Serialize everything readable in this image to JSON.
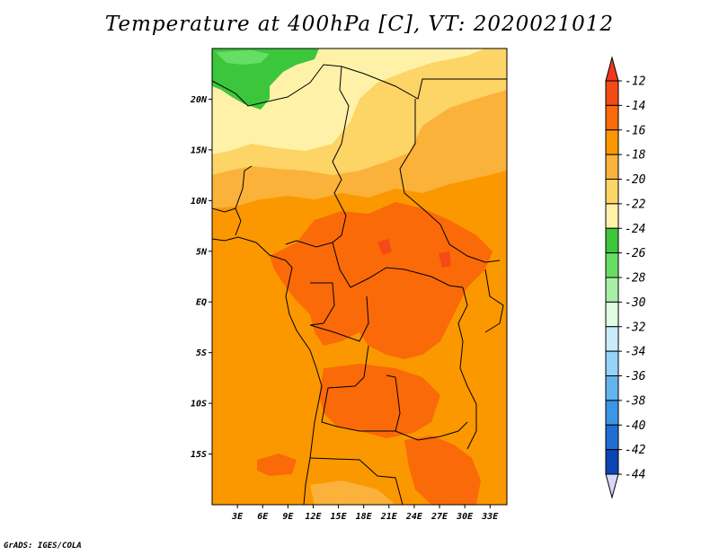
{
  "title": "Temperature at 400hPa [C], VT: 2020021012",
  "credit": "GrADS: IGES/COLA",
  "map": {
    "lon_range": [
      0,
      35
    ],
    "lat_range": [
      -20,
      25
    ],
    "x_ticks": [
      "3E",
      "6E",
      "9E",
      "12E",
      "15E",
      "18E",
      "21E",
      "24E",
      "27E",
      "30E",
      "33E"
    ],
    "x_tick_values": [
      3,
      6,
      9,
      12,
      15,
      18,
      21,
      24,
      27,
      30,
      33
    ],
    "y_ticks": [
      "20N",
      "15N",
      "10N",
      "5N",
      "EQ",
      "5S",
      "10S",
      "15S"
    ],
    "y_tick_values": [
      20,
      15,
      10,
      5,
      0,
      -5,
      -10,
      -15
    ]
  },
  "colorbar": {
    "labels": [
      "-12",
      "-14",
      "-16",
      "-18",
      "-20",
      "-22",
      "-24",
      "-26",
      "-28",
      "-30",
      "-32",
      "-34",
      "-36",
      "-38",
      "-40",
      "-42",
      "-44"
    ],
    "colors": [
      "#f54a15",
      "#fa6a08",
      "#fb9800",
      "#fbb23a",
      "#fdd466",
      "#fff2a8",
      "#3cc63c",
      "#66de66",
      "#a6f0a6",
      "#e2fce2",
      "#c8ecfc",
      "#96d2fa",
      "#64b4f0",
      "#3a96e6",
      "#1e6ed4",
      "#0a46b4",
      "#0a0a78"
    ],
    "top_color": "#f2361e",
    "bottom_color": "#d8d8f8"
  }
}
